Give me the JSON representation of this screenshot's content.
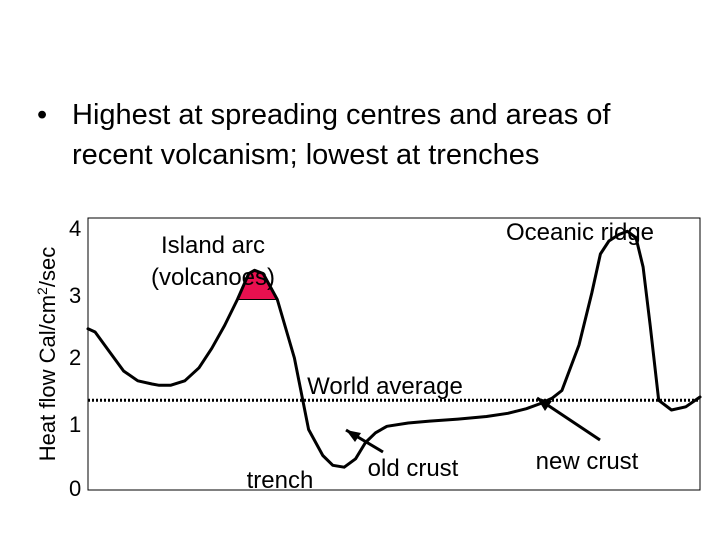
{
  "slide": {
    "bullet_symbol": "•",
    "bullet_line1": "Highest at spreading centres and areas of",
    "bullet_line2": "recent volcanism; lowest at trenches"
  },
  "chart_data": {
    "type": "line",
    "ylabel": "Heat flow Cal/cm²/sec",
    "ylabel_main": "Heat flow Cal/cm",
    "ylabel_sup": "2",
    "ylabel_tail": "/sec",
    "ylim": [
      0,
      4
    ],
    "yticks": [
      "4",
      "3",
      "2",
      "1",
      "0"
    ],
    "grid": false,
    "world_average_value": 1.35,
    "series": [
      {
        "x": [
          0.0,
          0.5,
          1.5,
          2.5,
          3.5,
          4.5,
          5.0,
          5.8,
          6.8,
          7.8,
          8.7,
          9.6,
          10.5,
          11.3,
          11.7,
          12.3,
          13.3,
          14.5,
          15.5,
          16.5,
          17.2,
          18.0,
          18.8,
          19.5,
          20.2,
          21.0,
          22.5,
          24.0,
          26.0,
          28.0,
          29.5,
          30.8,
          31.8,
          32.6,
          33.3,
          34.5,
          35.4,
          36.0,
          36.6,
          37.3,
          37.9,
          38.5,
          39.0,
          39.5,
          40.1,
          41.0,
          42.0,
          43.0
        ],
        "y": [
          2.45,
          2.4,
          2.1,
          1.8,
          1.65,
          1.6,
          1.58,
          1.58,
          1.65,
          1.85,
          2.15,
          2.5,
          2.9,
          3.3,
          3.35,
          3.3,
          2.9,
          2.0,
          0.9,
          0.5,
          0.35,
          0.32,
          0.45,
          0.7,
          0.85,
          0.95,
          1.0,
          1.03,
          1.06,
          1.1,
          1.15,
          1.22,
          1.3,
          1.38,
          1.5,
          2.2,
          3.0,
          3.6,
          3.8,
          3.9,
          3.95,
          3.85,
          3.4,
          2.5,
          1.35,
          1.2,
          1.25,
          1.4
        ]
      }
    ],
    "annotations": {
      "island_arc": "Island arc",
      "volcanoes": "(volcanoes)",
      "oceanic_ridge": "Oceanic ridge",
      "world_average": "World average",
      "trench": "trench",
      "old_crust": "old crust",
      "new_crust": "new crust"
    },
    "colors": {
      "line": "#000000",
      "world_average": "#000000",
      "volcano_marker": "#e8104f"
    }
  }
}
